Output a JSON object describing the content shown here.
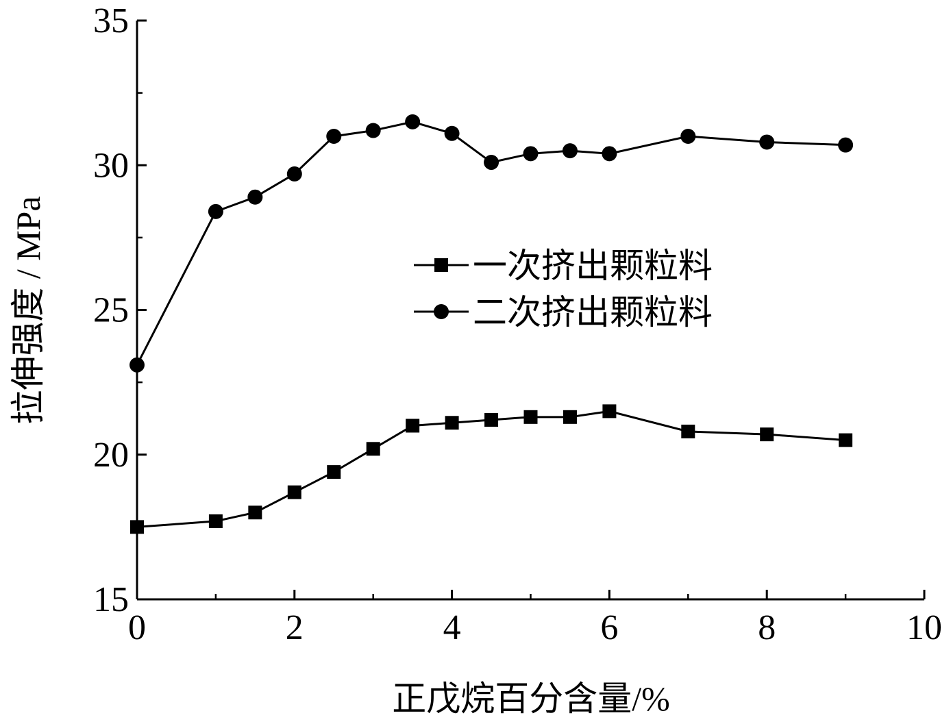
{
  "chart_data": {
    "type": "line",
    "xlabel": "正戊烷百分含量/%",
    "ylabel": "拉伸强度 / MPa",
    "xlim": [
      0,
      10
    ],
    "ylim": [
      15,
      35
    ],
    "xticks": [
      0,
      2,
      4,
      6,
      8,
      10
    ],
    "yticks": [
      15,
      20,
      25,
      30,
      35
    ],
    "grid": false,
    "legend_position": "center-right",
    "series": [
      {
        "name": "一次挤出颗粒料",
        "marker": "square",
        "color": "#000000",
        "x": [
          0,
          1,
          1.5,
          2,
          2.5,
          3,
          3.5,
          4,
          4.5,
          5,
          5.5,
          6,
          7,
          8,
          9
        ],
        "y": [
          17.5,
          17.7,
          18.0,
          18.7,
          19.4,
          20.2,
          21.0,
          21.1,
          21.2,
          21.3,
          21.3,
          21.5,
          20.8,
          20.7,
          20.5
        ]
      },
      {
        "name": "二次挤出颗粒料",
        "marker": "circle",
        "color": "#000000",
        "x": [
          0,
          1,
          1.5,
          2,
          2.5,
          3,
          3.5,
          4,
          4.5,
          5,
          5.5,
          6,
          7,
          8,
          9
        ],
        "y": [
          23.1,
          28.4,
          28.9,
          29.7,
          31.0,
          31.2,
          31.5,
          31.1,
          30.1,
          30.4,
          30.5,
          30.4,
          31.0,
          30.8,
          30.7
        ]
      }
    ]
  }
}
